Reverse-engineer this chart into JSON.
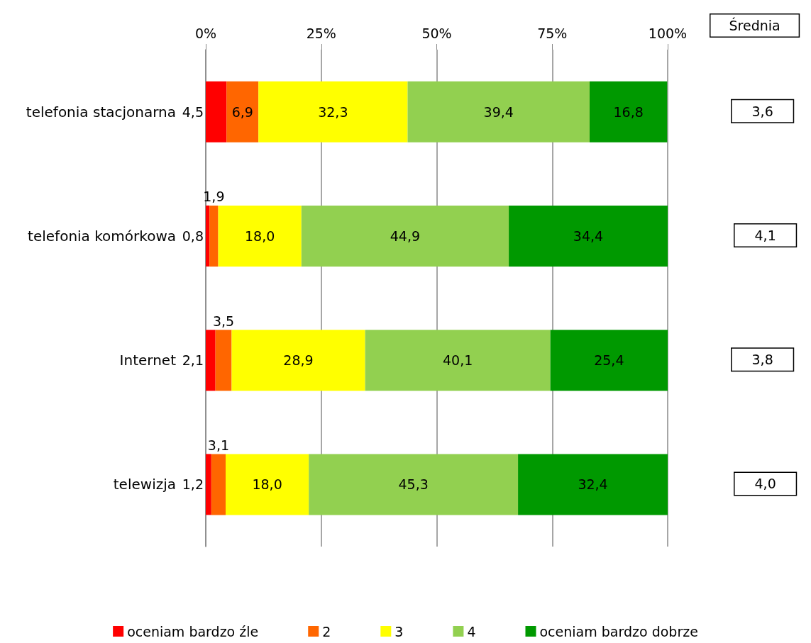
{
  "chart_data": {
    "type": "bar",
    "orientation": "horizontal",
    "stacked": true,
    "categories": [
      "telefonia stacjonarna",
      "telefonia komórkowa",
      "Internet",
      "telewizja"
    ],
    "series": [
      {
        "name": "oceniam bardzo źle",
        "color": "#ff0000",
        "values": [
          4.5,
          0.8,
          2.1,
          1.2
        ],
        "value_labels": [
          "4,5",
          "0,8",
          "2,1",
          "1,2"
        ]
      },
      {
        "name": "2",
        "color": "#ff6600",
        "values": [
          6.9,
          1.9,
          3.5,
          3.1
        ],
        "value_labels": [
          "6,9",
          "1,9",
          "3,5",
          "3,1"
        ]
      },
      {
        "name": "3",
        "color": "#ffff00",
        "values": [
          32.3,
          18.0,
          28.9,
          18.0
        ],
        "value_labels": [
          "32,3",
          "18,0",
          "28,9",
          "18,0"
        ]
      },
      {
        "name": "4",
        "color": "#92d050",
        "values": [
          39.4,
          44.9,
          40.1,
          45.3
        ],
        "value_labels": [
          "39,4",
          "44,9",
          "40,1",
          "45,3"
        ]
      },
      {
        "name": "oceniam bardzo dobrze",
        "color": "#009900",
        "values": [
          16.8,
          34.4,
          25.4,
          32.4
        ],
        "value_labels": [
          "16,8",
          "34,4",
          "25,4",
          "32,4"
        ]
      }
    ],
    "xlim": [
      0,
      100
    ],
    "xticks": [
      {
        "value": 0,
        "label": "0%"
      },
      {
        "value": 25,
        "label": "25%"
      },
      {
        "value": 50,
        "label": "50%"
      },
      {
        "value": 75,
        "label": "75%"
      },
      {
        "value": 100,
        "label": "100%"
      }
    ],
    "grid": "x",
    "legend": "bottom",
    "annotations": [
      "Średnia",
      "3,6",
      "4,1",
      "3,8",
      "4,0"
    ]
  }
}
